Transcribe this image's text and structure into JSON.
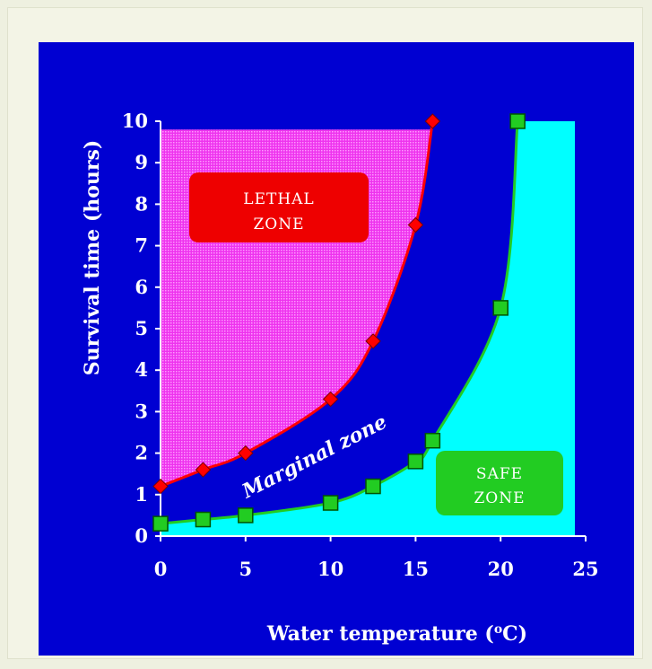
{
  "chart_data": {
    "type": "line",
    "xlabel": "Water temperature (",
    "xlabel_superscript": "o",
    "xlabel_suffix": "C)",
    "ylabel": "Survival time (hours)",
    "xlim": [
      0,
      25
    ],
    "ylim": [
      0,
      10
    ],
    "x_ticks": [
      "0",
      "5",
      "10",
      "15",
      "20",
      "25"
    ],
    "y_ticks": [
      "0",
      "1",
      "2",
      "3",
      "4",
      "5",
      "6",
      "7",
      "8",
      "9",
      "10"
    ],
    "series": [
      {
        "color": "#ff0000",
        "marker": "diamond",
        "x": [
          0,
          2.5,
          5,
          10,
          12.5,
          15,
          16
        ],
        "y": [
          1.2,
          1.6,
          2.0,
          3.3,
          4.7,
          7.5,
          10.0
        ]
      },
      {
        "color": "#22cc22",
        "marker": "square",
        "x": [
          0,
          2.5,
          5,
          10,
          12.5,
          15,
          16,
          20,
          21
        ],
        "y": [
          0.3,
          0.4,
          0.5,
          0.8,
          1.2,
          1.8,
          2.3,
          5.5,
          10.0
        ]
      }
    ],
    "zones": {
      "lethal_line1": "LETHAL",
      "lethal_line2": "ZONE",
      "lethal_color": "#ff33ff",
      "marginal": "Marginal zone",
      "marginal_color": "#0000d2",
      "safe_line1": "SAFE",
      "safe_line2": "ZONE",
      "safe_color": "#00ffff"
    },
    "background_color": "#0000d2",
    "grid": false
  }
}
